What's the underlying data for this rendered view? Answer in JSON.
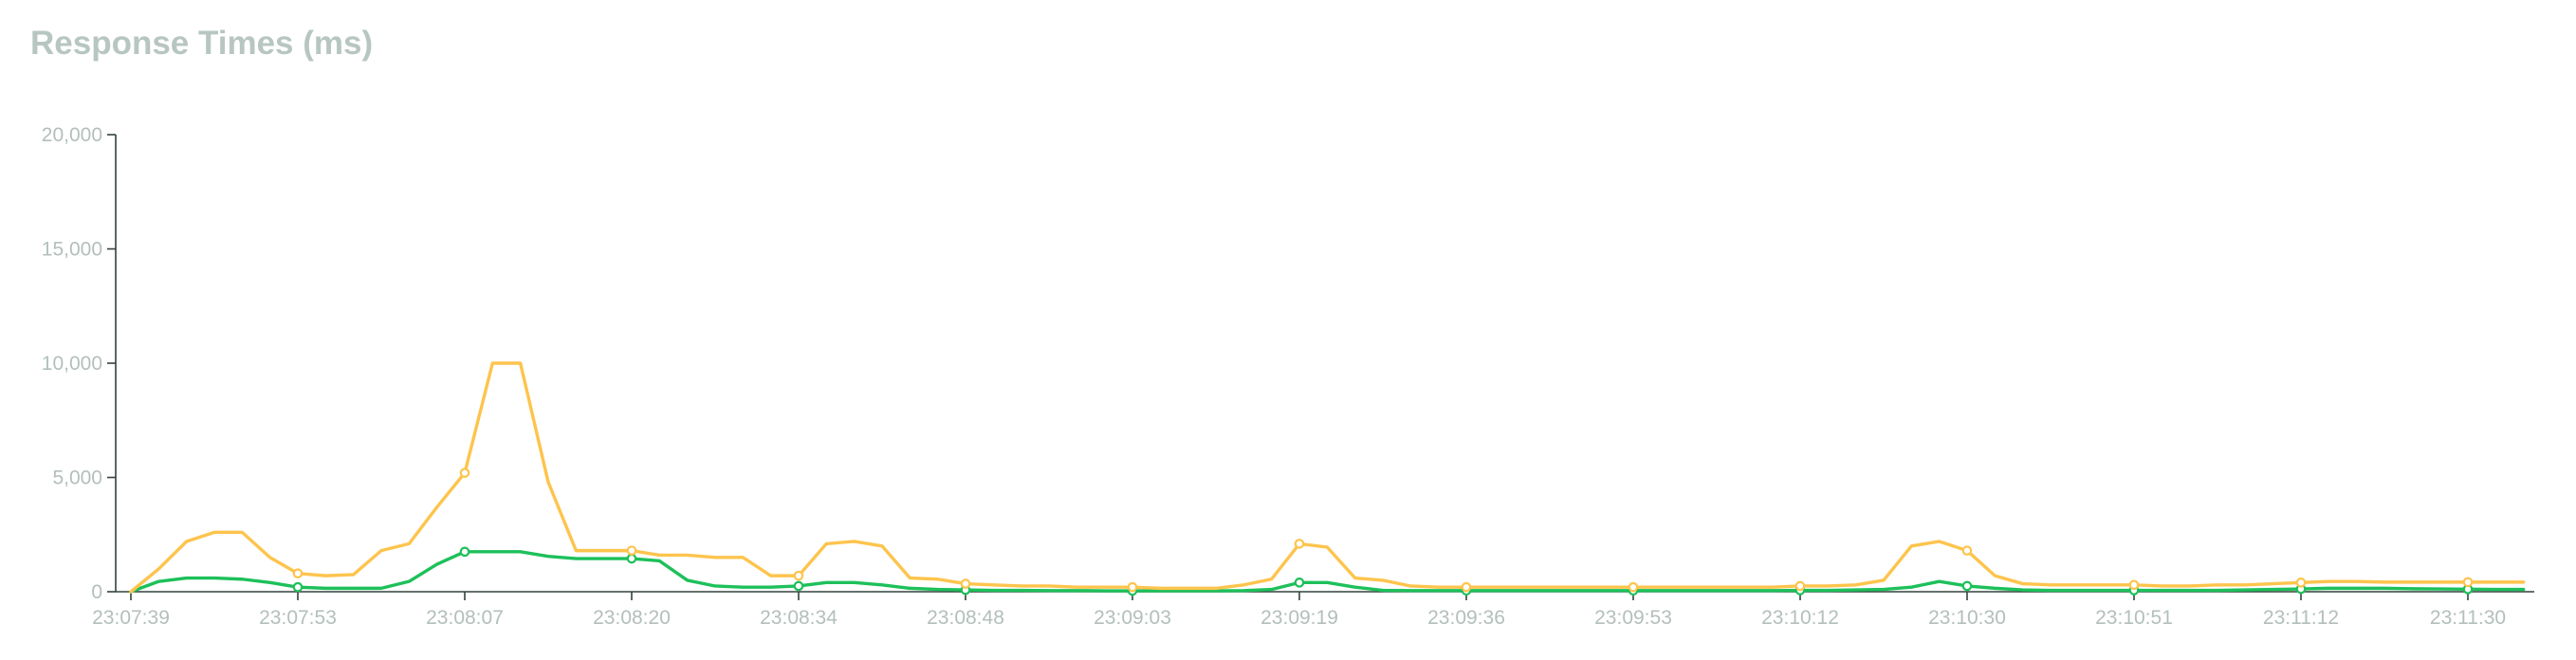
{
  "title": "Response Times (ms)",
  "chart_data": {
    "type": "line",
    "title": "Response Times (ms)",
    "xlabel": "",
    "ylabel": "",
    "ylim": [
      0,
      20000
    ],
    "y_ticks": [
      0,
      5000,
      10000,
      15000,
      20000
    ],
    "y_tick_labels": [
      "0",
      "5,000",
      "10,000",
      "15,000",
      "20,000"
    ],
    "x_tick_labels": [
      "23:07:39",
      "23:07:53",
      "23:08:07",
      "23:08:20",
      "23:08:34",
      "23:08:48",
      "23:09:03",
      "23:09:19",
      "23:09:36",
      "23:09:53",
      "23:10:12",
      "23:10:30",
      "23:10:51",
      "23:11:12",
      "23:11:30"
    ],
    "x_tick_indices": [
      0,
      6,
      12,
      18,
      24,
      30,
      36,
      42,
      48,
      54,
      60,
      66,
      72,
      78,
      84
    ],
    "grid": false,
    "legend": "none",
    "series": [
      {
        "color": "#1dc05a",
        "values": [
          0,
          450,
          600,
          600,
          550,
          400,
          200,
          150,
          150,
          150,
          450,
          1200,
          1750,
          1750,
          1750,
          1550,
          1450,
          1450,
          1450,
          1350,
          500,
          250,
          200,
          200,
          250,
          400,
          400,
          300,
          150,
          100,
          80,
          60,
          60,
          50,
          50,
          40,
          40,
          40,
          40,
          40,
          50,
          100,
          400,
          400,
          200,
          60,
          50,
          50,
          50,
          50,
          50,
          50,
          50,
          50,
          50,
          50,
          50,
          50,
          50,
          50,
          60,
          60,
          80,
          100,
          200,
          450,
          250,
          150,
          80,
          60,
          60,
          60,
          60,
          60,
          60,
          60,
          80,
          100,
          120,
          150,
          150,
          150,
          130,
          120,
          110,
          100,
          100
        ],
        "marker_indices": [
          6,
          12,
          18,
          24,
          30,
          36,
          42,
          48,
          54,
          60,
          66,
          72,
          78,
          84
        ]
      },
      {
        "color": "#fdc44d",
        "values": [
          0,
          1000,
          2200,
          2600,
          2600,
          1500,
          800,
          700,
          750,
          1800,
          2100,
          3700,
          5200,
          10000,
          10000,
          4800,
          1800,
          1800,
          1800,
          1600,
          1600,
          1500,
          1500,
          700,
          700,
          2100,
          2200,
          2000,
          600,
          550,
          350,
          300,
          250,
          250,
          200,
          200,
          200,
          150,
          150,
          150,
          300,
          550,
          2100,
          1950,
          600,
          500,
          250,
          200,
          200,
          200,
          200,
          200,
          200,
          200,
          200,
          200,
          200,
          200,
          200,
          200,
          250,
          250,
          300,
          500,
          2000,
          2200,
          1800,
          700,
          350,
          300,
          300,
          300,
          300,
          250,
          250,
          300,
          300,
          350,
          400,
          450,
          450,
          420,
          420,
          420,
          420,
          420,
          420
        ],
        "marker_indices": [
          6,
          12,
          18,
          24,
          30,
          36,
          42,
          48,
          54,
          60,
          66,
          72,
          78,
          84
        ]
      }
    ]
  }
}
